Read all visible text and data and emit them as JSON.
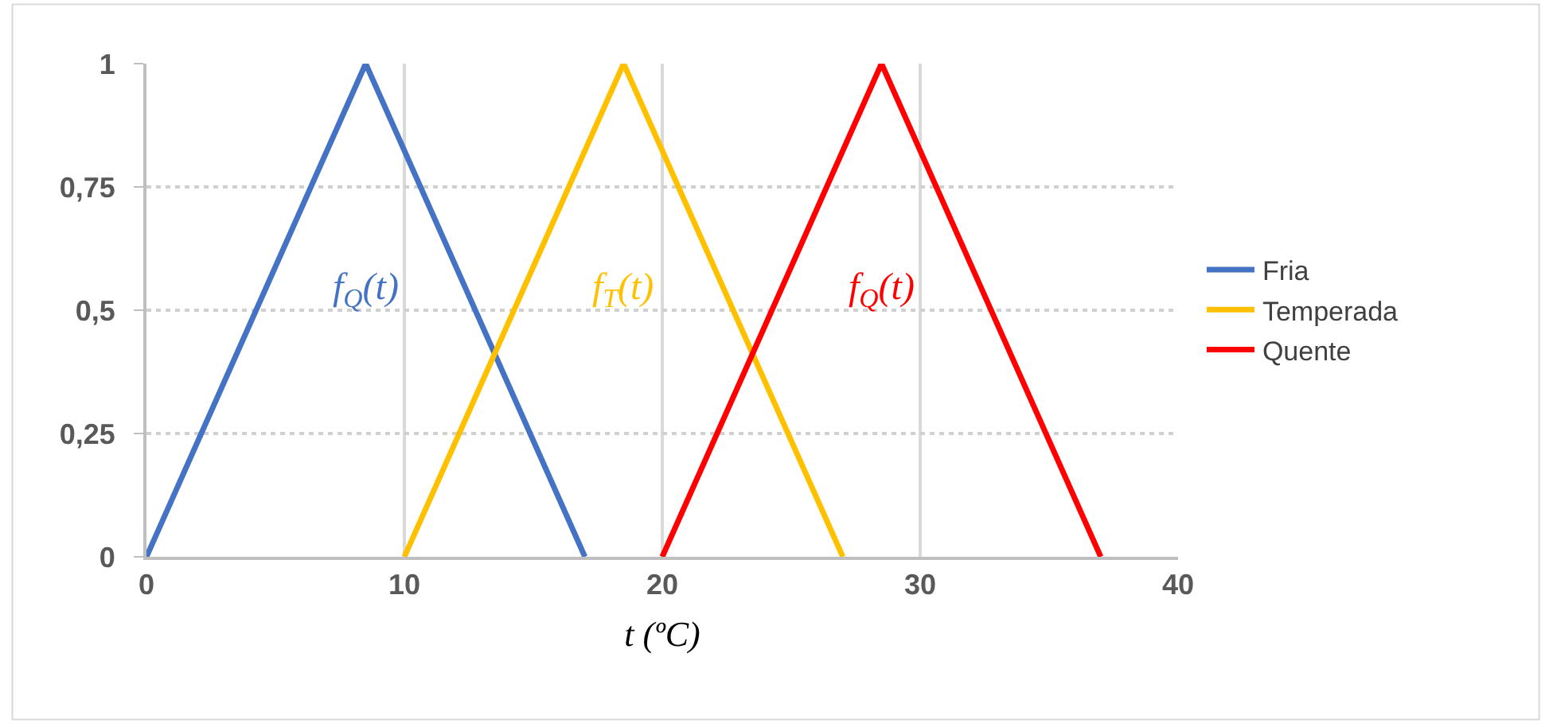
{
  "chart_data": {
    "type": "line",
    "xlabel": "t (ºC)",
    "legend": "right",
    "grid": true,
    "marker": "none",
    "line_style": "solid",
    "xlim": [
      0,
      40
    ],
    "xticks": [
      0,
      10,
      20,
      30,
      40
    ],
    "ylim": [
      0,
      1
    ],
    "yticks": [
      0,
      {
        "value": 0.25,
        "label": "0,25"
      },
      {
        "value": 0.5,
        "label": "0,5"
      },
      {
        "value": 0.75,
        "label": "0,75"
      },
      1
    ],
    "series": [
      {
        "name": "Fria",
        "color": "#4472c4",
        "x": [
          0,
          8.5,
          17
        ],
        "values": [
          0,
          1,
          0
        ]
      },
      {
        "name": "Temperada",
        "color": "#ffc000",
        "x": [
          10,
          18.5,
          27
        ],
        "values": [
          0,
          1,
          0
        ]
      },
      {
        "name": "Quente",
        "color": "#ff0000",
        "x": [
          20,
          28.5,
          37
        ],
        "values": [
          0,
          1,
          0
        ]
      }
    ],
    "annotations": [
      "f$_{Q}$(t)",
      "f$_{T}$(t)",
      "f$_{Q}$(t)"
    ]
  }
}
